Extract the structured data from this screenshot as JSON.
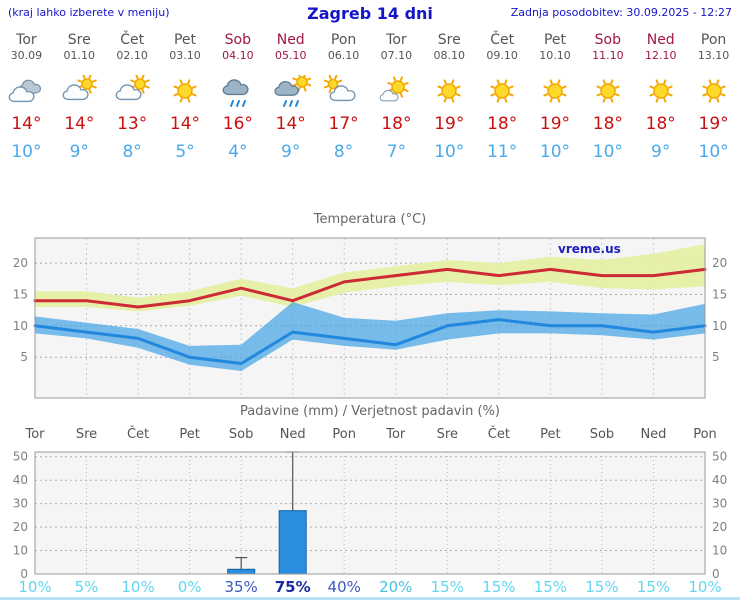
{
  "header": {
    "note": "(kraj lahko izberete v meniju)",
    "title": "Zagreb 14 dni",
    "last_update": "Zadnja posodobitev: 30.09.2025 - 12:27"
  },
  "watermark": "vreme.us",
  "days": [
    {
      "name": "Tor",
      "date": "30.09",
      "weekend": false,
      "icon": "cloudy",
      "high": 14,
      "low": 10
    },
    {
      "name": "Sre",
      "date": "01.10",
      "weekend": false,
      "icon": "partly-cloudy",
      "high": 14,
      "low": 9
    },
    {
      "name": "Čet",
      "date": "02.10",
      "weekend": false,
      "icon": "partly-cloudy",
      "high": 13,
      "low": 8
    },
    {
      "name": "Pet",
      "date": "03.10",
      "weekend": false,
      "icon": "sunny",
      "high": 14,
      "low": 5
    },
    {
      "name": "Sob",
      "date": "04.10",
      "weekend": true,
      "icon": "rain",
      "high": 16,
      "low": 4
    },
    {
      "name": "Ned",
      "date": "05.10",
      "weekend": true,
      "icon": "showers",
      "high": 14,
      "low": 9
    },
    {
      "name": "Pon",
      "date": "06.10",
      "weekend": false,
      "icon": "cloudy-sun",
      "high": 17,
      "low": 8
    },
    {
      "name": "Tor",
      "date": "07.10",
      "weekend": false,
      "icon": "mostly-sunny",
      "high": 18,
      "low": 7
    },
    {
      "name": "Sre",
      "date": "08.10",
      "weekend": false,
      "icon": "sunny",
      "high": 19,
      "low": 10
    },
    {
      "name": "Čet",
      "date": "09.10",
      "weekend": false,
      "icon": "sunny",
      "high": 18,
      "low": 11
    },
    {
      "name": "Pet",
      "date": "10.10",
      "weekend": false,
      "icon": "sunny",
      "high": 19,
      "low": 10
    },
    {
      "name": "Sob",
      "date": "11.10",
      "weekend": true,
      "icon": "sunny",
      "high": 18,
      "low": 10
    },
    {
      "name": "Ned",
      "date": "12.10",
      "weekend": true,
      "icon": "sunny",
      "high": 18,
      "low": 9
    },
    {
      "name": "Pon",
      "date": "13.10",
      "weekend": false,
      "icon": "sunny",
      "high": 19,
      "low": 10
    }
  ],
  "chart_data": [
    {
      "type": "line",
      "title": "Temperatura (°C)",
      "x_labels": [
        "Tor",
        "Sre",
        "Čet",
        "Pet",
        "Sob",
        "Ned",
        "Pon",
        "Tor",
        "Sre",
        "Čet",
        "Pet",
        "Sob",
        "Ned",
        "Pon"
      ],
      "ylim": [
        -1.5,
        24
      ],
      "yticks": [
        5,
        10,
        15,
        20
      ],
      "grid": true,
      "series": [
        {
          "name": "max-temp",
          "color": "#cc2b36",
          "values": [
            14,
            14,
            13,
            14,
            16,
            14,
            17,
            18,
            19,
            18,
            19,
            18,
            18,
            19
          ]
        },
        {
          "name": "min-temp",
          "color": "#2288dd",
          "values": [
            10,
            9,
            8,
            5,
            4,
            9,
            8,
            7,
            10,
            11,
            10,
            10,
            9,
            10
          ]
        }
      ],
      "bands": [
        {
          "name": "max-range",
          "color": "#e6efa4",
          "opacity": 0.95,
          "upper": [
            15.5,
            15.5,
            14.5,
            15.5,
            17.5,
            16.0,
            18.5,
            19.5,
            20.5,
            20.0,
            21.0,
            20.5,
            21.5,
            23.0
          ],
          "lower": [
            13.0,
            13.0,
            12.3,
            13.2,
            14.8,
            13.0,
            15.3,
            16.3,
            17.0,
            16.5,
            17.0,
            16.0,
            15.8,
            16.3
          ]
        },
        {
          "name": "min-range",
          "color": "#45a5e6",
          "opacity": 0.72,
          "upper": [
            11.5,
            10.5,
            9.5,
            6.8,
            7.0,
            13.8,
            11.3,
            10.8,
            12.0,
            12.5,
            12.3,
            12.0,
            11.8,
            13.5
          ],
          "lower": [
            8.8,
            8.0,
            6.5,
            3.8,
            2.8,
            7.8,
            6.8,
            6.2,
            7.8,
            8.8,
            8.8,
            8.5,
            7.8,
            8.8
          ]
        }
      ]
    },
    {
      "type": "bar",
      "title": "Padavine (mm) / Verjetnost padavin (%)",
      "x_labels": [
        "Tor",
        "Sre",
        "Čet",
        "Pet",
        "Sob",
        "Ned",
        "Pon",
        "Tor",
        "Sre",
        "Čet",
        "Pet",
        "Sob",
        "Ned",
        "Pon"
      ],
      "ylim": [
        0,
        52
      ],
      "yticks": [
        0,
        10,
        20,
        30,
        40,
        50
      ],
      "grid": true,
      "values": [
        0,
        0,
        0,
        0,
        2,
        27,
        0,
        0,
        0,
        0,
        0,
        0,
        0,
        0
      ],
      "whisker_high": [
        0,
        0,
        0,
        0,
        7,
        52,
        0,
        0,
        0,
        0,
        0,
        0,
        0,
        0
      ],
      "bar_color": "#2a8fe0",
      "bar_border": "#1060a0",
      "whisker_color": "#555555",
      "probabilities": [
        {
          "label": "10%",
          "color": "#63d6f0",
          "bold": false
        },
        {
          "label": "5%",
          "color": "#63d6f0",
          "bold": false
        },
        {
          "label": "10%",
          "color": "#63d6f0",
          "bold": false
        },
        {
          "label": "0%",
          "color": "#63d6f0",
          "bold": false
        },
        {
          "label": "35%",
          "color": "#3b5bbf",
          "bold": false
        },
        {
          "label": "75%",
          "color": "#1a2b9e",
          "bold": true
        },
        {
          "label": "40%",
          "color": "#3b5bbf",
          "bold": false
        },
        {
          "label": "20%",
          "color": "#49c0e6",
          "bold": false
        },
        {
          "label": "15%",
          "color": "#63d6f0",
          "bold": false
        },
        {
          "label": "15%",
          "color": "#63d6f0",
          "bold": false
        },
        {
          "label": "15%",
          "color": "#63d6f0",
          "bold": false
        },
        {
          "label": "15%",
          "color": "#63d6f0",
          "bold": false
        },
        {
          "label": "15%",
          "color": "#63d6f0",
          "bold": false
        },
        {
          "label": "10%",
          "color": "#63d6f0",
          "bold": false
        }
      ]
    }
  ]
}
